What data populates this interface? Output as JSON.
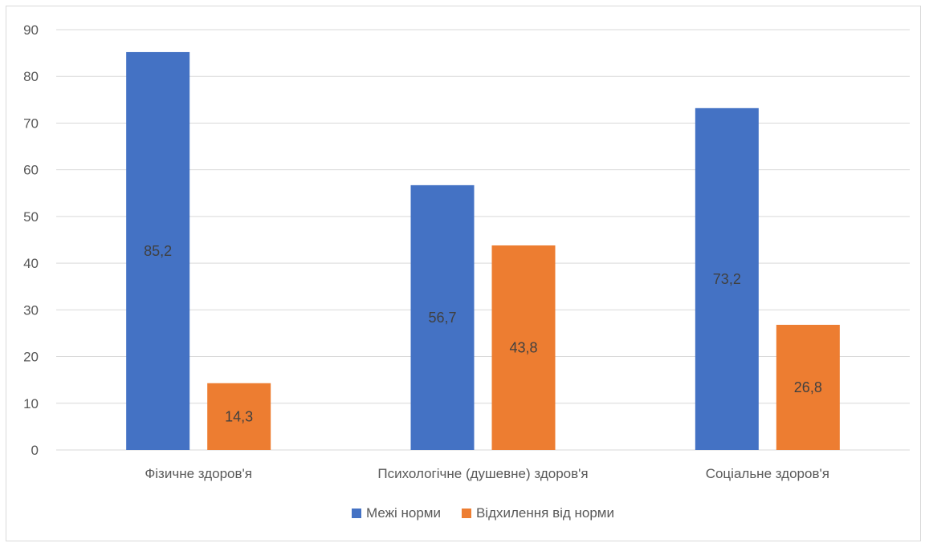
{
  "chart_data": {
    "type": "bar",
    "title": "",
    "xlabel": "",
    "ylabel": "",
    "categories": [
      "Фізичне здоров'я",
      "Психологічне (душевне) здоров'я",
      "Соціальне здоров'я"
    ],
    "series": [
      {
        "name": "Межі норми",
        "values": [
          85.2,
          56.7,
          73.2
        ],
        "labels": [
          "85,2",
          "56,7",
          "73,2"
        ],
        "color": "#4472C4"
      },
      {
        "name": "Відхилення від норми",
        "values": [
          14.3,
          43.8,
          26.8
        ],
        "labels": [
          "14,3",
          "43,8",
          "26,8"
        ],
        "color": "#ED7D31"
      }
    ],
    "ylim": [
      0,
      90
    ],
    "yticks": [
      0,
      10,
      20,
      30,
      40,
      50,
      60,
      70,
      80,
      90
    ],
    "grid": true,
    "gridColor": "#d9d9d9",
    "legend_position": "bottom"
  }
}
